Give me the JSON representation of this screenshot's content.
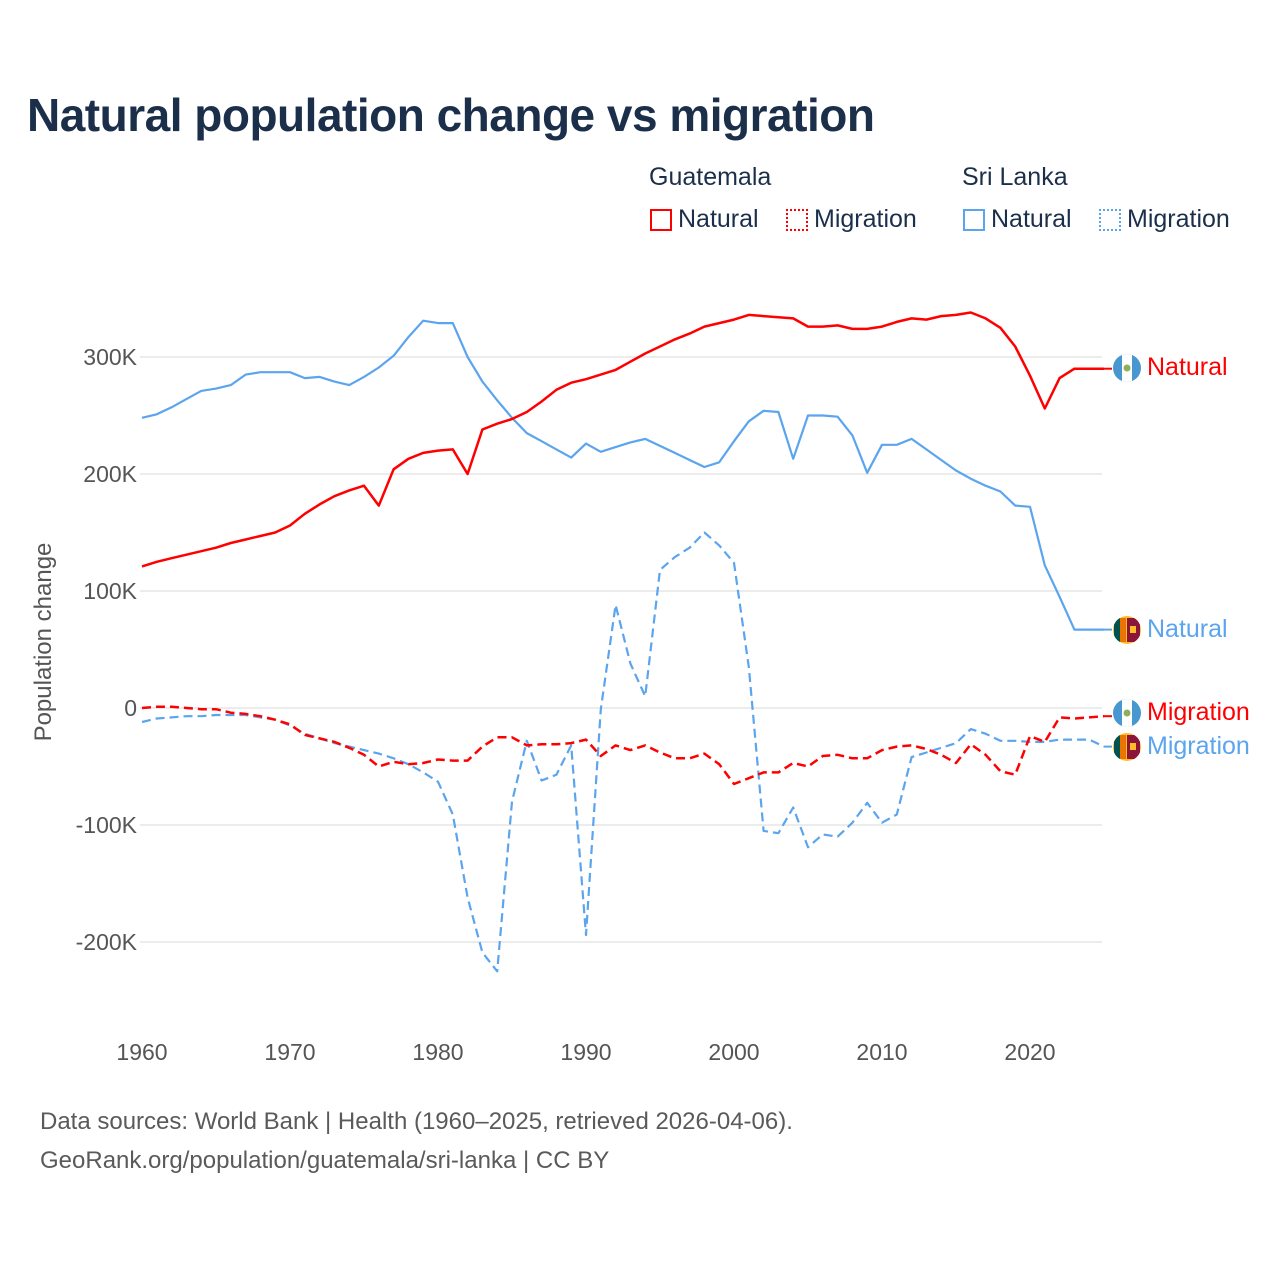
{
  "chart_data": {
    "type": "line",
    "title": "Natural population change vs migration",
    "xlabel": "",
    "ylabel": "Population change",
    "xlim": [
      1960,
      2025
    ],
    "ylim": [
      -250000,
      350000
    ],
    "x_ticks": [
      1960,
      1970,
      1980,
      1990,
      2000,
      2010,
      2020
    ],
    "x_tick_labels": [
      "1960",
      "1970",
      "1980",
      "1990",
      "2000",
      "2010",
      "2020"
    ],
    "y_ticks": [
      300000,
      200000,
      100000,
      0,
      -100000,
      -200000
    ],
    "y_tick_labels": [
      "300K",
      "200K",
      "100K",
      "0",
      "-100K",
      "-200K"
    ],
    "grid": true,
    "legend_placement": "top-right",
    "legend_groups": [
      {
        "country": "Guatemala",
        "items": [
          "Natural",
          "Migration"
        ]
      },
      {
        "country": "Sri Lanka",
        "items": [
          "Natural",
          "Migration"
        ]
      }
    ],
    "x_start": 1960,
    "series": [
      {
        "name": "Guatemala Natural",
        "country": "Guatemala",
        "end_label": "Natural",
        "color": "#ff0000",
        "dash": "solid",
        "flag": "guatemala-flag",
        "values_k": [
          121,
          125,
          128,
          131,
          134,
          137,
          141,
          144,
          147,
          150,
          156,
          166,
          174,
          181,
          186,
          190,
          173,
          204,
          213,
          218,
          220,
          221,
          200,
          238,
          243,
          247,
          253,
          262,
          272,
          278,
          281,
          285,
          289,
          296,
          303,
          309,
          315,
          320,
          326,
          329,
          332,
          336,
          335,
          334,
          333,
          326,
          326,
          327,
          324,
          324,
          326,
          330,
          333,
          332,
          335,
          336,
          338,
          333,
          325,
          309,
          284,
          256,
          282,
          290,
          290,
          290
        ]
      },
      {
        "name": "Guatemala Migration",
        "country": "Guatemala",
        "end_label": "Migration",
        "color": "#ff0000",
        "dash": "dashed",
        "flag": "guatemala-flag",
        "values_k": [
          0,
          1,
          1,
          0,
          -1,
          -1,
          -4,
          -5,
          -7,
          -10,
          -14,
          -23,
          -26,
          -29,
          -34,
          -40,
          -50,
          -46,
          -48,
          -47,
          -44,
          -45,
          -45,
          -33,
          -25,
          -25,
          -32,
          -31,
          -31,
          -30,
          -27,
          -41,
          -32,
          -36,
          -32,
          -38,
          -43,
          -43,
          -39,
          -48,
          -65,
          -60,
          -55,
          -55,
          -47,
          -50,
          -41,
          -40,
          -43,
          -43,
          -36,
          -33,
          -32,
          -35,
          -40,
          -47,
          -31,
          -40,
          -54,
          -57,
          -24,
          -29,
          -8,
          -9,
          -8,
          -7
        ]
      },
      {
        "name": "Sri Lanka Natural",
        "country": "Sri Lanka",
        "end_label": "Natural",
        "color": "#5ba4ee",
        "dash": "solid",
        "flag": "sri-lanka-flag",
        "values_k": [
          248,
          251,
          257,
          264,
          271,
          273,
          276,
          285,
          287,
          287,
          287,
          282,
          283,
          279,
          276,
          283,
          291,
          301,
          317,
          331,
          329,
          329,
          300,
          279,
          263,
          248,
          235,
          228,
          221,
          214,
          226,
          219,
          223,
          227,
          230,
          224,
          218,
          212,
          206,
          210,
          228,
          245,
          254,
          253,
          213,
          250,
          250,
          249,
          233,
          201,
          225,
          225,
          230,
          221,
          212,
          203,
          196,
          190,
          185,
          173,
          172,
          122,
          95,
          67,
          67,
          67
        ]
      },
      {
        "name": "Sri Lanka Migration",
        "country": "Sri Lanka",
        "end_label": "Migration",
        "color": "#5ba4ee",
        "dash": "dashed",
        "flag": "sri-lanka-flag",
        "values_k": [
          -12,
          -9,
          -8,
          -7,
          -7,
          -6,
          -6,
          -6,
          -8,
          -10,
          -15,
          -22,
          -26,
          -30,
          -33,
          -36,
          -39,
          -43,
          -48,
          -55,
          -63,
          -91,
          -162,
          -209,
          -225,
          -80,
          -28,
          -62,
          -57,
          -32,
          -194,
          -1,
          88,
          38,
          10,
          118,
          129,
          137,
          150,
          139,
          124,
          35,
          -105,
          -107,
          -85,
          -119,
          -108,
          -110,
          -98,
          -81,
          -98,
          -91,
          -42,
          -38,
          -34,
          -30,
          -18,
          -22,
          -28,
          -28,
          -29,
          -29,
          -27,
          -27,
          -27,
          -33
        ]
      }
    ]
  },
  "footer": {
    "line1": "Data sources: World Bank | Health (1960–2025, retrieved 2026-04-06).",
    "line2": "GeoRank.org/population/guatemala/sri-lanka | CC BY"
  }
}
